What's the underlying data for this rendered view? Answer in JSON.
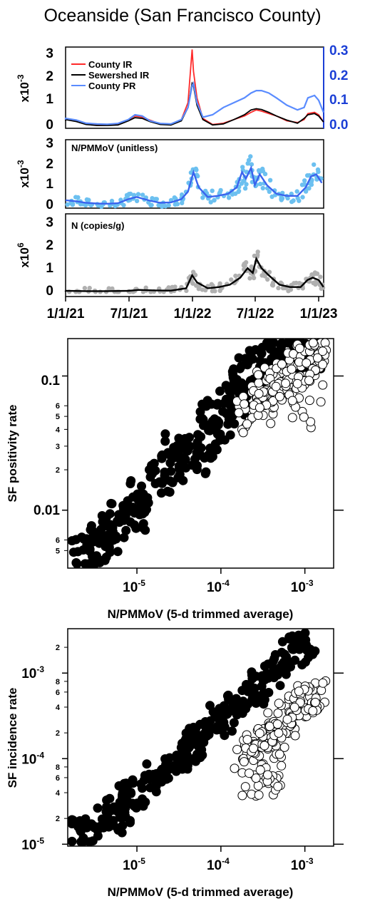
{
  "title": "Oceanside (San Francisco County)",
  "colors": {
    "county_ir": "#ff2a2a",
    "sewershed_ir": "#000000",
    "county_pr": "#5a8cff",
    "pr_axis": "#1b3fd6",
    "nppm_points": "#6cc0f0",
    "nppm_line": "#3a63ee",
    "n_points": "#b0b0b0",
    "n_line": "#000000"
  },
  "chart_data": [
    {
      "type": "line",
      "panel": "top",
      "yexp_label": "x10",
      "yexp_power": "-3",
      "ylim": [
        0,
        3.3
      ],
      "yticks": [
        "0",
        "1",
        "2",
        "3"
      ],
      "y2lim": [
        0,
        0.33
      ],
      "y2ticks": [
        "0.0",
        "0.1",
        "0.2",
        "0.3"
      ],
      "x_dates": [
        "2020-12-01",
        "2021-01-01",
        "2021-02-01",
        "2021-03-01",
        "2021-04-01",
        "2021-05-01",
        "2021-06-01",
        "2021-07-01",
        "2021-07-20",
        "2021-08-10",
        "2021-09-01",
        "2021-10-01",
        "2021-11-01",
        "2021-12-01",
        "2021-12-20",
        "2022-01-01",
        "2022-01-05",
        "2022-01-15",
        "2022-02-01",
        "2022-03-01",
        "2022-04-01",
        "2022-05-01",
        "2022-06-01",
        "2022-06-20",
        "2022-07-05",
        "2022-07-20",
        "2022-08-10",
        "2022-09-01",
        "2022-10-01",
        "2022-11-01",
        "2022-11-20",
        "2022-12-01",
        "2022-12-20",
        "2023-01-01",
        "2023-01-15"
      ],
      "series": [
        {
          "name": "County IR",
          "axis": "left",
          "values": [
            0.3,
            0.35,
            0.25,
            0.12,
            0.08,
            0.07,
            0.1,
            0.3,
            0.45,
            0.4,
            0.28,
            0.12,
            0.1,
            0.3,
            1.0,
            3.2,
            2.3,
            1.2,
            0.35,
            0.1,
            0.15,
            0.3,
            0.45,
            0.6,
            0.7,
            0.65,
            0.55,
            0.45,
            0.25,
            0.18,
            0.3,
            0.55,
            0.6,
            0.5,
            0.2
          ]
        },
        {
          "name": "Sewershed IR",
          "axis": "left",
          "values": [
            0.25,
            0.3,
            0.22,
            0.1,
            0.06,
            0.06,
            0.08,
            0.25,
            0.38,
            0.35,
            0.22,
            0.1,
            0.08,
            0.25,
            0.8,
            1.8,
            1.7,
            0.9,
            0.3,
            0.08,
            0.12,
            0.3,
            0.5,
            0.7,
            0.75,
            0.72,
            0.6,
            0.45,
            0.28,
            0.15,
            0.35,
            0.5,
            0.55,
            0.45,
            0.2
          ]
        },
        {
          "name": "County PR",
          "axis": "right",
          "values": [
            0.03,
            0.035,
            0.028,
            0.015,
            0.012,
            0.011,
            0.014,
            0.03,
            0.05,
            0.045,
            0.025,
            0.014,
            0.012,
            0.03,
            0.08,
            0.17,
            0.18,
            0.1,
            0.04,
            0.05,
            0.08,
            0.1,
            0.12,
            0.14,
            0.15,
            0.15,
            0.14,
            0.12,
            0.09,
            0.07,
            0.08,
            0.12,
            0.13,
            0.11,
            0.06
          ]
        }
      ],
      "legend_position": "top-left"
    },
    {
      "type": "scatter",
      "panel": "middle",
      "label": "N/PMMoV (unitless)",
      "yexp_label": "x10",
      "yexp_power": "-3",
      "ylim": [
        0,
        3.1
      ],
      "yticks": [
        "0",
        "1",
        "2",
        "3"
      ],
      "trend_dates": [
        "2020-12-01",
        "2021-01-01",
        "2021-02-01",
        "2021-03-01",
        "2021-04-01",
        "2021-05-01",
        "2021-06-01",
        "2021-07-01",
        "2021-07-25",
        "2021-09-01",
        "2021-10-01",
        "2021-11-01",
        "2021-12-01",
        "2021-12-20",
        "2022-01-05",
        "2022-01-20",
        "2022-02-15",
        "2022-03-15",
        "2022-04-15",
        "2022-05-10",
        "2022-05-25",
        "2022-06-05",
        "2022-06-20",
        "2022-07-01",
        "2022-07-15",
        "2022-08-05",
        "2022-09-01",
        "2022-10-01",
        "2022-11-01",
        "2022-11-25",
        "2022-12-10",
        "2022-12-25",
        "2023-01-10"
      ],
      "trend_values": [
        0.3,
        0.3,
        0.25,
        0.18,
        0.15,
        0.14,
        0.16,
        0.35,
        0.45,
        0.28,
        0.18,
        0.2,
        0.35,
        0.7,
        1.6,
        0.9,
        0.45,
        0.5,
        0.6,
        0.9,
        1.6,
        1.3,
        1.8,
        1.0,
        1.5,
        1.0,
        0.6,
        0.5,
        0.5,
        0.9,
        1.4,
        1.5,
        1.1
      ]
    },
    {
      "type": "scatter",
      "panel": "bottom",
      "label": "N (copies/g)",
      "yexp_label": "x10",
      "yexp_power": "6",
      "ylim": [
        -0.2,
        3.3
      ],
      "yticks": [
        "0",
        "1",
        "2",
        "3"
      ],
      "xticks": [
        "1/1/21",
        "7/1/21",
        "1/1/22",
        "7/1/22",
        "1/1/23"
      ],
      "trend_dates": [
        "2020-12-01",
        "2021-01-01",
        "2021-03-01",
        "2021-05-01",
        "2021-07-01",
        "2021-08-01",
        "2021-09-15",
        "2021-11-01",
        "2021-12-15",
        "2022-01-01",
        "2022-01-15",
        "2022-02-15",
        "2022-03-20",
        "2022-04-20",
        "2022-05-20",
        "2022-06-10",
        "2022-06-25",
        "2022-07-05",
        "2022-07-20",
        "2022-08-10",
        "2022-09-10",
        "2022-10-10",
        "2022-11-10",
        "2022-11-30",
        "2022-12-15",
        "2023-01-01",
        "2023-01-15"
      ],
      "trend_values": [
        0.05,
        0.04,
        0.03,
        0.03,
        0.04,
        0.08,
        0.06,
        0.05,
        0.15,
        0.7,
        0.4,
        0.15,
        0.2,
        0.3,
        0.6,
        1.0,
        0.8,
        1.4,
        1.0,
        0.7,
        0.3,
        0.2,
        0.2,
        0.5,
        0.6,
        0.5,
        0.2
      ]
    },
    {
      "type": "scatter",
      "panel": "positivity",
      "xlabel": "N/PMMoV (5-d trimmed average)",
      "ylabel": "SF positivity rate",
      "xscale": "log",
      "yscale": "log",
      "xlim": [
        1.5e-06,
        0.0022
      ],
      "ylim": [
        0.0037,
        0.19
      ],
      "xticks": [
        {
          "base": "10",
          "exp": "-5"
        },
        {
          "base": "10",
          "exp": "-4"
        },
        {
          "base": "10",
          "exp": "-3"
        }
      ],
      "yticks": [
        {
          "value": "0.1"
        },
        {
          "value": "0.01"
        }
      ],
      "yminor_labels": [
        "6",
        "5",
        "4",
        "3",
        "2",
        "6",
        "5"
      ],
      "filled_points": [
        [
          2e-06,
          0.005
        ],
        [
          3e-06,
          0.0045
        ],
        [
          4e-06,
          0.006
        ],
        [
          6e-06,
          0.008
        ],
        [
          9e-06,
          0.009
        ],
        [
          1.5e-05,
          0.014
        ],
        [
          2.5e-05,
          0.02
        ],
        [
          3e-05,
          0.03
        ],
        [
          5e-05,
          0.025
        ],
        [
          8e-05,
          0.04
        ],
        [
          0.0001,
          0.06
        ],
        [
          0.00015,
          0.07
        ],
        [
          0.0002,
          0.1
        ],
        [
          0.0003,
          0.12
        ],
        [
          0.0005,
          0.14
        ],
        [
          0.0008,
          0.16
        ],
        [
          0.0012,
          0.16
        ]
      ],
      "open_points": [
        [
          0.0002,
          0.05
        ],
        [
          0.0003,
          0.06
        ],
        [
          0.0004,
          0.08
        ],
        [
          0.0006,
          0.09
        ],
        [
          0.0008,
          0.1
        ],
        [
          0.001,
          0.12
        ],
        [
          0.0013,
          0.15
        ],
        [
          0.001,
          0.05
        ]
      ]
    },
    {
      "type": "scatter",
      "panel": "incidence",
      "xlabel": "N/PMMoV (5-d trimmed average)",
      "ylabel": "SF incidence rate",
      "xscale": "log",
      "yscale": "log",
      "xlim": [
        1.5e-06,
        0.0022
      ],
      "ylim": [
        9.5e-06,
        0.0033
      ],
      "xticks": [
        {
          "base": "10",
          "exp": "-5"
        },
        {
          "base": "10",
          "exp": "-4"
        },
        {
          "base": "10",
          "exp": "-3"
        }
      ],
      "yticks": [
        {
          "base": "10",
          "exp": "-3"
        },
        {
          "base": "10",
          "exp": "-4"
        },
        {
          "base": "10",
          "exp": "-5"
        }
      ],
      "yminor_labels": [
        "2",
        "8",
        "6",
        "4",
        "2",
        "8",
        "6",
        "4",
        "2"
      ],
      "filled_points": [
        [
          1.8e-06,
          1.4e-05
        ],
        [
          3e-06,
          1.5e-05
        ],
        [
          5e-06,
          2e-05
        ],
        [
          8e-06,
          3e-05
        ],
        [
          1.2e-05,
          5e-05
        ],
        [
          2e-05,
          7e-05
        ],
        [
          3e-05,
          0.0001
        ],
        [
          5e-05,
          0.00015
        ],
        [
          8e-05,
          0.00025
        ],
        [
          0.00012,
          0.00035
        ],
        [
          0.0002,
          0.0005
        ],
        [
          0.0003,
          0.0008
        ],
        [
          0.0005,
          0.0012
        ],
        [
          0.0008,
          0.002
        ],
        [
          0.0012,
          0.0024
        ]
      ],
      "open_points": [
        [
          0.0002,
          0.0001
        ],
        [
          0.0003,
          0.00015
        ],
        [
          0.0004,
          0.0002
        ],
        [
          0.0006,
          0.0003
        ],
        [
          0.0008,
          0.0004
        ],
        [
          0.001,
          0.0005
        ],
        [
          0.0013,
          0.0006
        ],
        [
          0.00025,
          5e-05
        ],
        [
          0.0005,
          6e-05
        ]
      ]
    }
  ]
}
